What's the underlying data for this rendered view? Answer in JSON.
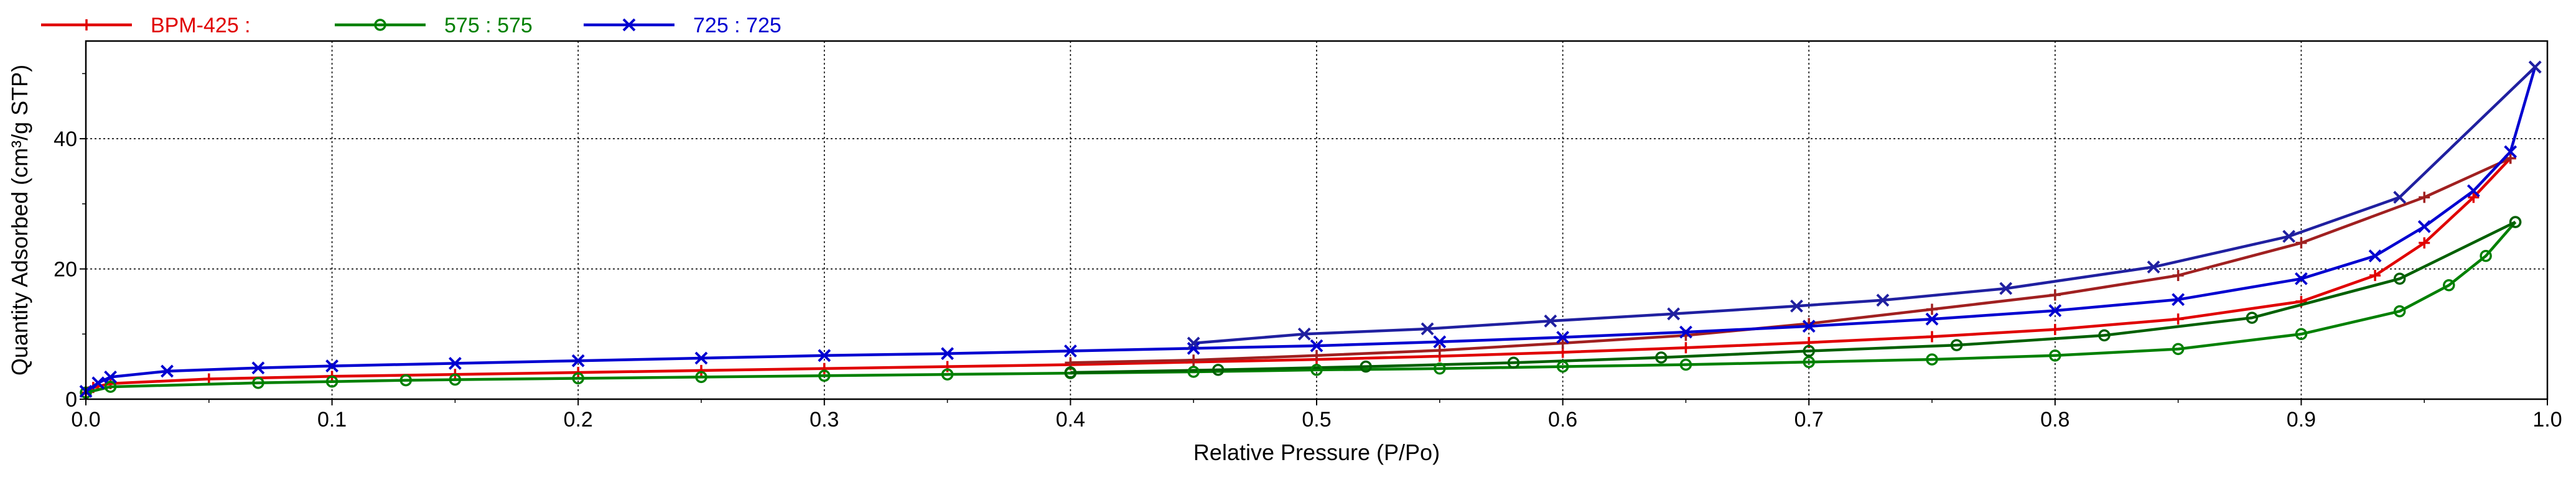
{
  "chart_data": {
    "type": "line",
    "xlabel": "Relative Pressure (P/Po)",
    "ylabel": "Quantity Adsorbed (cm³/g STP)",
    "xlim": [
      0.0,
      1.0
    ],
    "ylim": [
      0,
      55
    ],
    "xticks": [
      0.0,
      0.1,
      0.2,
      0.3,
      0.4,
      0.5,
      0.6,
      0.7,
      0.8,
      0.9,
      1.0
    ],
    "xtick_labels": [
      "0.0",
      "0.1",
      "0.2",
      "0.3",
      "0.4",
      "0.5",
      "0.6",
      "0.7",
      "0.8",
      "0.9",
      "1.0"
    ],
    "yticks": [
      0,
      20,
      40
    ],
    "ytick_labels": [
      "0",
      "20",
      "40"
    ],
    "grid": true,
    "legend_position": "top-left",
    "series": [
      {
        "name": "BPM-425 :",
        "color": "#e00000",
        "desorption_color": "#a02020",
        "marker": "plus",
        "adsorption": {
          "x": [
            0.0,
            0.003,
            0.01,
            0.05,
            0.1,
            0.15,
            0.2,
            0.25,
            0.3,
            0.35,
            0.4,
            0.45,
            0.5,
            0.55,
            0.6,
            0.65,
            0.7,
            0.75,
            0.8,
            0.85,
            0.9,
            0.93,
            0.95,
            0.97,
            0.985
          ],
          "y": [
            1.0,
            1.8,
            2.4,
            3.1,
            3.5,
            3.8,
            4.1,
            4.4,
            4.7,
            5.0,
            5.3,
            5.7,
            6.1,
            6.6,
            7.2,
            7.9,
            8.7,
            9.6,
            10.7,
            12.3,
            15.0,
            19.0,
            24.0,
            31.0,
            37.0
          ]
        },
        "desorption": {
          "x": [
            0.985,
            0.95,
            0.9,
            0.85,
            0.8,
            0.75,
            0.7,
            0.65,
            0.6,
            0.55,
            0.5,
            0.45,
            0.4
          ],
          "y": [
            37.0,
            31.0,
            24.0,
            19.0,
            16.0,
            13.8,
            11.6,
            9.8,
            8.6,
            7.5,
            6.7,
            6.0,
            5.6
          ]
        }
      },
      {
        "name": "575 : 575",
        "color": "#008000",
        "desorption_color": "#006000",
        "marker": "circle",
        "adsorption": {
          "x": [
            0.0,
            0.01,
            0.07,
            0.1,
            0.13,
            0.15,
            0.2,
            0.25,
            0.3,
            0.35,
            0.4,
            0.45,
            0.5,
            0.55,
            0.6,
            0.65,
            0.7,
            0.75,
            0.8,
            0.85,
            0.9,
            0.94,
            0.96,
            0.975,
            0.987
          ],
          "y": [
            1.0,
            1.9,
            2.5,
            2.7,
            2.9,
            3.0,
            3.2,
            3.4,
            3.6,
            3.8,
            4.0,
            4.2,
            4.5,
            4.7,
            5.0,
            5.3,
            5.7,
            6.1,
            6.7,
            7.7,
            10.0,
            13.5,
            17.5,
            22.0,
            27.2
          ]
        },
        "desorption": {
          "x": [
            0.987,
            0.94,
            0.88,
            0.82,
            0.76,
            0.7,
            0.64,
            0.58,
            0.52,
            0.46,
            0.4
          ],
          "y": [
            27.2,
            18.5,
            12.5,
            9.8,
            8.3,
            7.4,
            6.4,
            5.6,
            5.0,
            4.5,
            4.1
          ]
        }
      },
      {
        "name": "725 : 725",
        "color": "#0000d0",
        "desorption_color": "#2020a0",
        "marker": "x",
        "adsorption": {
          "x": [
            0.0,
            0.005,
            0.01,
            0.033,
            0.07,
            0.1,
            0.15,
            0.2,
            0.25,
            0.3,
            0.35,
            0.4,
            0.45,
            0.5,
            0.55,
            0.6,
            0.65,
            0.7,
            0.75,
            0.8,
            0.85,
            0.9,
            0.93,
            0.95,
            0.97,
            0.985,
            0.995
          ],
          "y": [
            1.2,
            2.5,
            3.4,
            4.3,
            4.8,
            5.1,
            5.5,
            5.9,
            6.3,
            6.7,
            7.0,
            7.4,
            7.8,
            8.2,
            8.8,
            9.5,
            10.3,
            11.2,
            12.3,
            13.6,
            15.3,
            18.5,
            22.0,
            26.5,
            32.0,
            38.0,
            51.0
          ]
        },
        "desorption": {
          "x": [
            0.995,
            0.94,
            0.895,
            0.84,
            0.78,
            0.73,
            0.695,
            0.645,
            0.595,
            0.545,
            0.495,
            0.45
          ],
          "y": [
            51.0,
            31.0,
            25.0,
            20.3,
            17.0,
            15.2,
            14.3,
            13.1,
            12.0,
            10.8,
            10.0,
            8.6
          ]
        }
      }
    ]
  }
}
